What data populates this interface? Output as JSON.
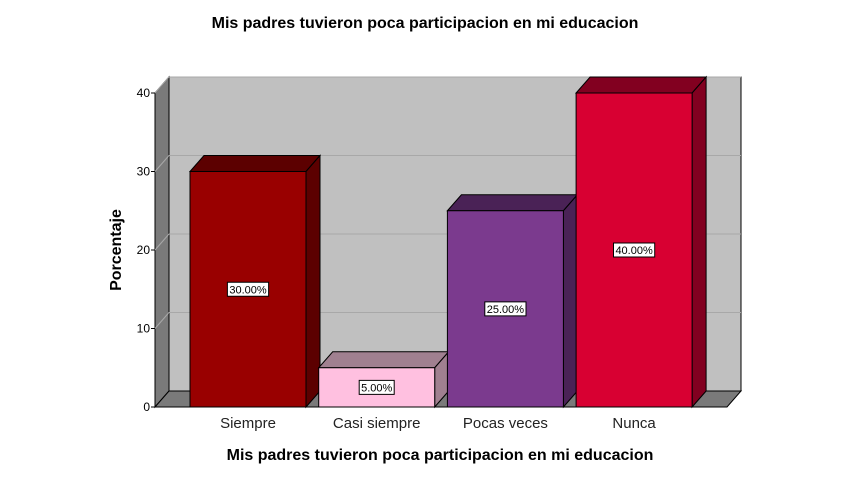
{
  "chart_data": {
    "type": "bar",
    "title": "Mis padres tuvieron poca participacion en mi educacion",
    "xlabel": "Mis padres tuvieron poca participacion en mi educacion",
    "ylabel": "Porcentaje",
    "categories": [
      "Siempre",
      "Casi siempre",
      "Pocas veces",
      "Nunca"
    ],
    "values": [
      30,
      5,
      25,
      40
    ],
    "data_labels": [
      "30.00%",
      "5.00%",
      "25.00%",
      "40.00%"
    ],
    "colors": [
      "#990000",
      "#FFC0E0",
      "#7B3A8E",
      "#D80032"
    ],
    "top_colors": [
      "#5C0000",
      "#A08090",
      "#4A2256",
      "#820020"
    ],
    "yticks": [
      0,
      10,
      20,
      30,
      40
    ],
    "ylim": [
      0,
      40
    ],
    "grid": true,
    "style": "3d",
    "wall_color": "#C0C0C0"
  }
}
